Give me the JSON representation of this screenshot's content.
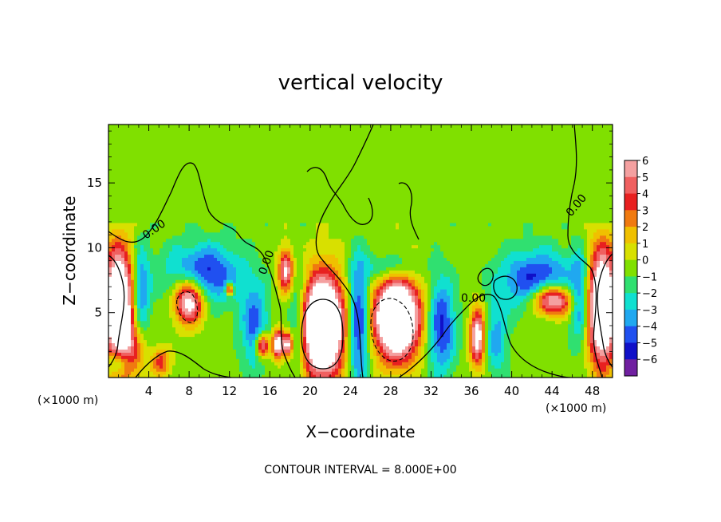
{
  "chart_data": {
    "type": "heatmap",
    "title": "vertical velocity",
    "xlabel": "X−coordinate",
    "ylabel": "Z−coordinate",
    "x_unit_label_left": "(×1000 m)",
    "x_unit_label_right": "(×1000 m)",
    "xlim": [
      0,
      50
    ],
    "ylim": [
      0,
      19.5
    ],
    "x_ticks": [
      4,
      8,
      12,
      16,
      20,
      24,
      28,
      32,
      36,
      40,
      44,
      48
    ],
    "y_ticks": [
      5,
      10,
      15
    ],
    "colorbar": {
      "levels": [
        6,
        5,
        4,
        3,
        2,
        1,
        0,
        -1,
        -2,
        -3,
        -4,
        -5,
        -6
      ],
      "labels": [
        "6",
        "5",
        "4",
        "3",
        "2",
        "1",
        "0",
        "−1",
        "−2",
        "−3",
        "−4",
        "−5",
        "−6"
      ],
      "colors": [
        "#f4a0a0",
        "#f06060",
        "#e82020",
        "#f07a10",
        "#f0c000",
        "#d8e000",
        "#80e000",
        "#30e070",
        "#10e0d0",
        "#20a8f0",
        "#2050f0",
        "#1010c8",
        "#7020a0"
      ]
    },
    "contour_labels": [
      "0.00",
      "0.00",
      "0.00",
      "0.00"
    ],
    "contour_interval_text": "CONTOUR INTERVAL = 8.000E+00",
    "features": [
      {
        "kind": "updraft",
        "x": 21.2,
        "z": 4.0,
        "rx": 2.4,
        "rz": 4.2,
        "w": 14
      },
      {
        "kind": "updraft",
        "x": 28.6,
        "z": 4.6,
        "rx": 2.5,
        "rz": 3.4,
        "w": 13
      },
      {
        "kind": "updraft",
        "x": 1.0,
        "z": 5.5,
        "rx": 1.6,
        "rz": 4.8,
        "w": 12
      },
      {
        "kind": "updraft",
        "x": 49.0,
        "z": 5.5,
        "rx": 1.6,
        "rz": 4.8,
        "w": 12
      },
      {
        "kind": "updraft",
        "x": 36.6,
        "z": 3.2,
        "rx": 0.8,
        "rz": 2.4,
        "w": 8
      },
      {
        "kind": "updraft",
        "x": 17.6,
        "z": 8.3,
        "rx": 0.8,
        "rz": 1.8,
        "w": 7
      },
      {
        "kind": "updraft",
        "x": 15.3,
        "z": 2.5,
        "rx": 0.7,
        "rz": 1.0,
        "w": 8
      },
      {
        "kind": "updraft",
        "x": 16.8,
        "z": 2.6,
        "rx": 0.6,
        "rz": 1.2,
        "w": 8
      },
      {
        "kind": "updraft",
        "x": 17.8,
        "z": 2.6,
        "rx": 0.5,
        "rz": 1.0,
        "w": 7
      },
      {
        "kind": "updraft",
        "x": 8.0,
        "z": 6.0,
        "rx": 1.6,
        "rz": 1.9,
        "w": 9
      },
      {
        "kind": "updraft",
        "x": 44.0,
        "z": 6.0,
        "rx": 2.2,
        "rz": 1.3,
        "w": 9
      },
      {
        "kind": "updraft",
        "x": 12.0,
        "z": 6.8,
        "rx": 0.4,
        "rz": 0.5,
        "w": 7
      },
      {
        "kind": "updraft",
        "x": 5.2,
        "z": 1.2,
        "rx": 1.0,
        "rz": 1.2,
        "w": 4
      },
      {
        "kind": "updraft",
        "x": 2.5,
        "z": 2.0,
        "rx": 1.5,
        "rz": 2.5,
        "w": 3
      },
      {
        "kind": "downdraft",
        "x": 24.8,
        "z": 4.2,
        "rx": 1.2,
        "rz": 5.0,
        "w": -6
      },
      {
        "kind": "downdraft",
        "x": 33.0,
        "z": 4.0,
        "rx": 1.5,
        "rz": 4.0,
        "w": -5
      },
      {
        "kind": "downdraft",
        "x": 18.8,
        "z": 4.5,
        "rx": 1.2,
        "rz": 4.5,
        "w": -4
      },
      {
        "kind": "downdraft",
        "x": 3.2,
        "z": 6.5,
        "rx": 1.0,
        "rz": 4.0,
        "w": -4
      },
      {
        "kind": "downdraft",
        "x": 46.8,
        "z": 6.0,
        "rx": 1.0,
        "rz": 4.0,
        "w": -4
      },
      {
        "kind": "downdraft",
        "x": 9.5,
        "z": 8.0,
        "rx": 4.0,
        "rz": 2.5,
        "w": -5
      },
      {
        "kind": "downdraft",
        "x": 42.5,
        "z": 7.5,
        "rx": 4.0,
        "rz": 2.5,
        "w": -5
      },
      {
        "kind": "downdraft",
        "x": 14.5,
        "z": 4.0,
        "rx": 1.5,
        "rz": 3.5,
        "w": -4
      },
      {
        "kind": "downdraft",
        "x": 28.0,
        "z": 8.5,
        "rx": 3.0,
        "rz": 1.2,
        "w": -3
      },
      {
        "kind": "downdraft",
        "x": 38.5,
        "z": 3.0,
        "rx": 1.2,
        "rz": 3.0,
        "w": -3
      },
      {
        "kind": "downdraft",
        "x": 1.0,
        "z": 1.2,
        "rx": 1.2,
        "rz": 1.0,
        "w": -4
      }
    ]
  }
}
